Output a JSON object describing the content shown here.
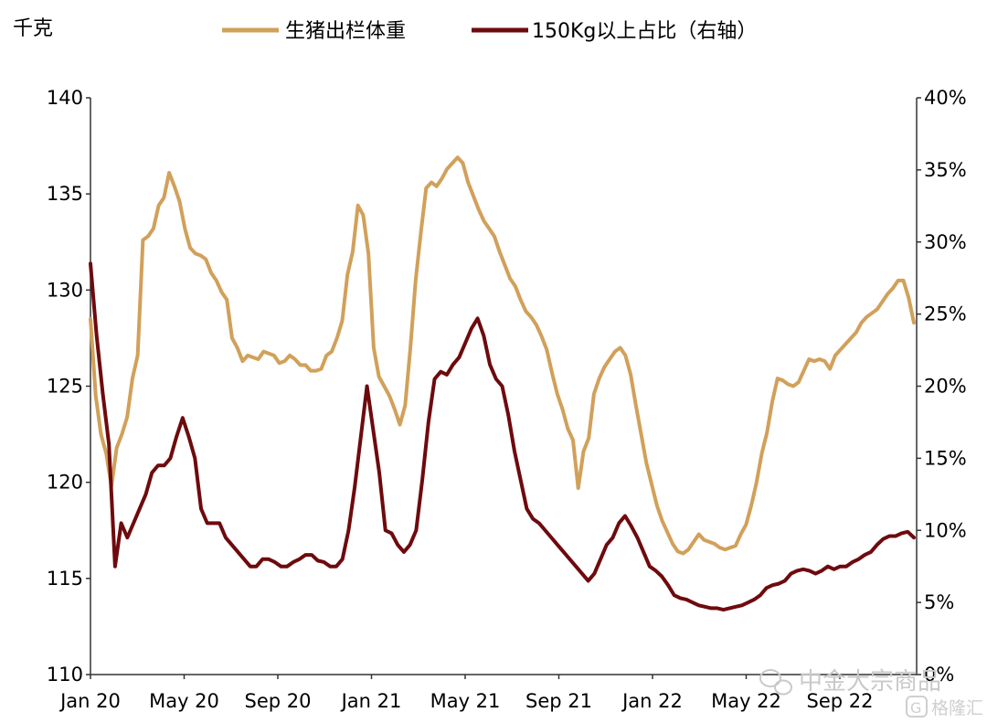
{
  "chart_data": {
    "type": "line",
    "left_unit": "千克",
    "x_tick_labels": [
      "Jan 20",
      "May 20",
      "Sep 20",
      "Jan 21",
      "May 21",
      "Sep 21",
      "Jan 22",
      "May 22",
      "Sep 22"
    ],
    "y_left": {
      "ylim": [
        110,
        140
      ],
      "ticks": [
        "110",
        "115",
        "120",
        "125",
        "130",
        "135",
        "140"
      ]
    },
    "y_right": {
      "ylim": [
        0,
        40
      ],
      "ticks": [
        "0%",
        "5%",
        "10%",
        "15%",
        "20%",
        "25%",
        "30%",
        "35%",
        "40%"
      ]
    },
    "grid": false,
    "legend_position": "top",
    "series": [
      {
        "name": "生猪出栏体重",
        "color": "#d1a05a",
        "axis": "left",
        "values": [
          128.5,
          124.5,
          122.5,
          121.5,
          119.8,
          121.8,
          122.5,
          123.4,
          125.4,
          126.6,
          132.6,
          132.8,
          133.2,
          134.4,
          134.8,
          136.1,
          135.4,
          134.6,
          133.2,
          132.2,
          131.9,
          131.8,
          131.6,
          130.9,
          130.5,
          129.9,
          129.5,
          127.5,
          127.0,
          126.3,
          126.6,
          126.5,
          126.4,
          126.8,
          126.7,
          126.6,
          126.2,
          126.3,
          126.6,
          126.4,
          126.1,
          126.1,
          125.8,
          125.8,
          125.9,
          126.6,
          126.8,
          127.5,
          128.4,
          130.8,
          132.0,
          134.4,
          133.9,
          131.9,
          127.0,
          125.5,
          125.0,
          124.5,
          123.8,
          123.0,
          124.0,
          127.0,
          130.5,
          133.0,
          135.3,
          135.6,
          135.4,
          135.8,
          136.3,
          136.6,
          136.9,
          136.6,
          135.6,
          134.9,
          134.2,
          133.6,
          133.2,
          132.8,
          132.0,
          131.3,
          130.6,
          130.2,
          129.5,
          128.9,
          128.6,
          128.2,
          127.6,
          126.9,
          125.7,
          124.6,
          123.8,
          122.8,
          122.2,
          119.7,
          121.6,
          122.3,
          124.6,
          125.4,
          126.0,
          126.4,
          126.8,
          127.0,
          126.6,
          125.6,
          124.0,
          122.5,
          121.0,
          119.9,
          118.8,
          118.0,
          117.4,
          116.8,
          116.4,
          116.3,
          116.5,
          116.9,
          117.3,
          117.0,
          116.9,
          116.8,
          116.6,
          116.5,
          116.6,
          116.7,
          117.3,
          117.8,
          118.8,
          120.0,
          121.5,
          122.6,
          124.2,
          125.4,
          125.3,
          125.1,
          125.0,
          125.2,
          125.8,
          126.4,
          126.3,
          126.4,
          126.3,
          125.9,
          126.6,
          126.9,
          127.2,
          127.5,
          127.8,
          128.3,
          128.6,
          128.8,
          129.0,
          129.4,
          129.8,
          130.1,
          130.5,
          130.5,
          129.6,
          128.3
        ]
      },
      {
        "name": "150Kg以上占比（右轴）",
        "color": "#6e0a0d",
        "axis": "right",
        "values": [
          28.5,
          23.5,
          19.5,
          16.0,
          7.5,
          10.5,
          9.5,
          10.5,
          11.5,
          12.5,
          14.0,
          14.5,
          14.5,
          15.0,
          16.5,
          17.8,
          16.5,
          15.0,
          11.5,
          10.5,
          10.5,
          10.5,
          9.5,
          9.0,
          8.5,
          8.0,
          7.5,
          7.5,
          8.0,
          8.0,
          7.8,
          7.5,
          7.5,
          7.8,
          8.0,
          8.3,
          8.3,
          7.9,
          7.8,
          7.5,
          7.5,
          8.0,
          10.0,
          13.0,
          16.5,
          20.0,
          17.0,
          14.0,
          10.0,
          9.8,
          9.0,
          8.5,
          9.0,
          10.0,
          13.5,
          17.5,
          20.5,
          21.0,
          20.8,
          21.5,
          22.0,
          23.0,
          24.0,
          24.7,
          23.5,
          21.5,
          20.5,
          20.0,
          18.0,
          15.5,
          13.5,
          11.5,
          10.8,
          10.5,
          10.0,
          9.5,
          9.0,
          8.5,
          8.0,
          7.5,
          7.0,
          6.5,
          7.0,
          8.0,
          9.0,
          9.5,
          10.5,
          11.0,
          10.3,
          9.5,
          8.5,
          7.5,
          7.2,
          6.8,
          6.2,
          5.5,
          5.3,
          5.2,
          5.0,
          4.8,
          4.7,
          4.6,
          4.6,
          4.5,
          4.6,
          4.7,
          4.8,
          5.0,
          5.2,
          5.5,
          6.0,
          6.2,
          6.3,
          6.5,
          7.0,
          7.2,
          7.3,
          7.2,
          7.0,
          7.2,
          7.5,
          7.3,
          7.5,
          7.5,
          7.8,
          8.0,
          8.3,
          8.5,
          9.0,
          9.4,
          9.6,
          9.6,
          9.8,
          9.9,
          9.5
        ]
      }
    ]
  },
  "watermark": {
    "main": "中金大宗商品",
    "secondary": "格隆汇"
  }
}
